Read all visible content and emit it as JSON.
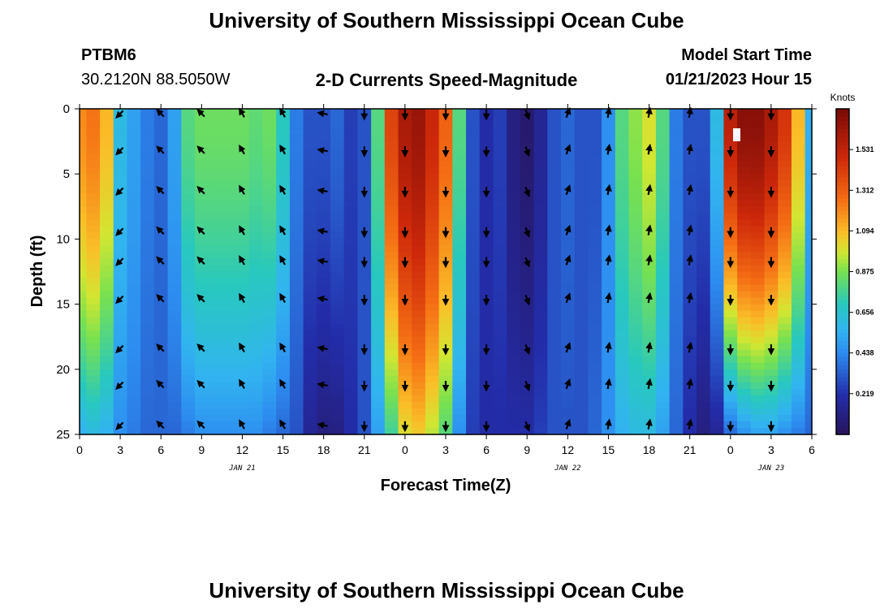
{
  "header": {
    "title": "University of Southern Mississippi Ocean Cube",
    "station": "PTBM6",
    "coords": "30.2120N  88.5050W",
    "plot_title": "2-D Currents Speed-Magnitude",
    "model_start_label": "Model Start Time",
    "model_start_value": "01/21/2023 Hour 15"
  },
  "footer": {
    "title": "University of Southern Mississippi Ocean Cube"
  },
  "chart_data": {
    "type": "heatmap",
    "title": "2-D Currents Speed-Magnitude",
    "xlabel": "Forecast Time(Z)",
    "ylabel": "Depth (ft)",
    "xlim": [
      0,
      54
    ],
    "ylim": [
      25,
      0
    ],
    "x_tick_values": [
      0,
      3,
      6,
      9,
      12,
      15,
      18,
      21,
      24,
      27,
      30,
      33,
      36,
      39,
      42,
      45,
      48,
      51,
      54
    ],
    "x_tick_labels": [
      "0",
      "3",
      "6",
      "9",
      "12",
      "15",
      "18",
      "21",
      "0",
      "3",
      "6",
      "9",
      "12",
      "15",
      "18",
      "21",
      "0",
      "3",
      "6"
    ],
    "y_ticks": [
      0,
      5,
      10,
      15,
      20,
      25
    ],
    "date_labels": [
      {
        "text": "JAN 21",
        "x": 12
      },
      {
        "text": "JAN 22",
        "x": 36
      },
      {
        "text": "JAN 23",
        "x": 51
      }
    ],
    "colorbar": {
      "label": "Knots",
      "min": 0,
      "max": 1.75,
      "ticks": [
        0.219,
        0.438,
        0.656,
        0.875,
        1.094,
        1.312,
        1.531
      ]
    },
    "time_columns": [
      0,
      1,
      2,
      3,
      4,
      5,
      6,
      7,
      8,
      9,
      10,
      11,
      12,
      13,
      14,
      15,
      16,
      17,
      18,
      19,
      20,
      21,
      22,
      23,
      24,
      25,
      26,
      27,
      28,
      29,
      30,
      31,
      32,
      33,
      34,
      35,
      36,
      37,
      38,
      39,
      40,
      41,
      42,
      43,
      44,
      45,
      46,
      47,
      48,
      49,
      50,
      51,
      52,
      53,
      54
    ],
    "surface_speed": [
      1.2,
      1.25,
      1.1,
      0.6,
      0.5,
      0.4,
      0.35,
      0.5,
      0.8,
      0.85,
      0.85,
      0.85,
      0.85,
      0.82,
      0.85,
      0.7,
      0.4,
      0.3,
      0.3,
      0.35,
      0.25,
      0.3,
      0.8,
      1.4,
      1.6,
      1.65,
      1.5,
      1.3,
      0.8,
      0.3,
      0.2,
      0.25,
      0.1,
      0.05,
      0.15,
      0.3,
      0.35,
      0.3,
      0.3,
      0.45,
      0.8,
      0.9,
      1.0,
      0.8,
      0.4,
      0.3,
      0.3,
      0.6,
      1.55,
      1.7,
      1.7,
      1.6,
      1.45,
      1.1,
      0.55
    ],
    "bottom_speed": [
      0.55,
      0.6,
      0.55,
      0.45,
      0.4,
      0.35,
      0.35,
      0.35,
      0.4,
      0.45,
      0.45,
      0.45,
      0.45,
      0.45,
      0.4,
      0.35,
      0.3,
      0.15,
      0.1,
      0.1,
      0.2,
      0.3,
      0.5,
      0.75,
      1.0,
      1.05,
      0.95,
      0.8,
      0.45,
      0.25,
      0.2,
      0.2,
      0.2,
      0.2,
      0.25,
      0.3,
      0.3,
      0.3,
      0.35,
      0.45,
      0.55,
      0.6,
      0.6,
      0.5,
      0.35,
      0.2,
      0.1,
      0.15,
      0.35,
      0.45,
      0.5,
      0.5,
      0.45,
      0.4,
      0.35
    ],
    "arrow_times": [
      3,
      6,
      9,
      12,
      15,
      18,
      21,
      24,
      27,
      30,
      33,
      36,
      39,
      42,
      45,
      48,
      51
    ],
    "arrow_depths": [
      0,
      3.2,
      6.3,
      9.4,
      11.7,
      14.6,
      18.4,
      21.2,
      24.3
    ],
    "arrow_directions_deg": [
      225,
      315,
      315,
      330,
      330,
      280,
      180,
      180,
      180,
      180,
      160,
      20,
      10,
      10,
      10,
      180,
      180
    ]
  }
}
